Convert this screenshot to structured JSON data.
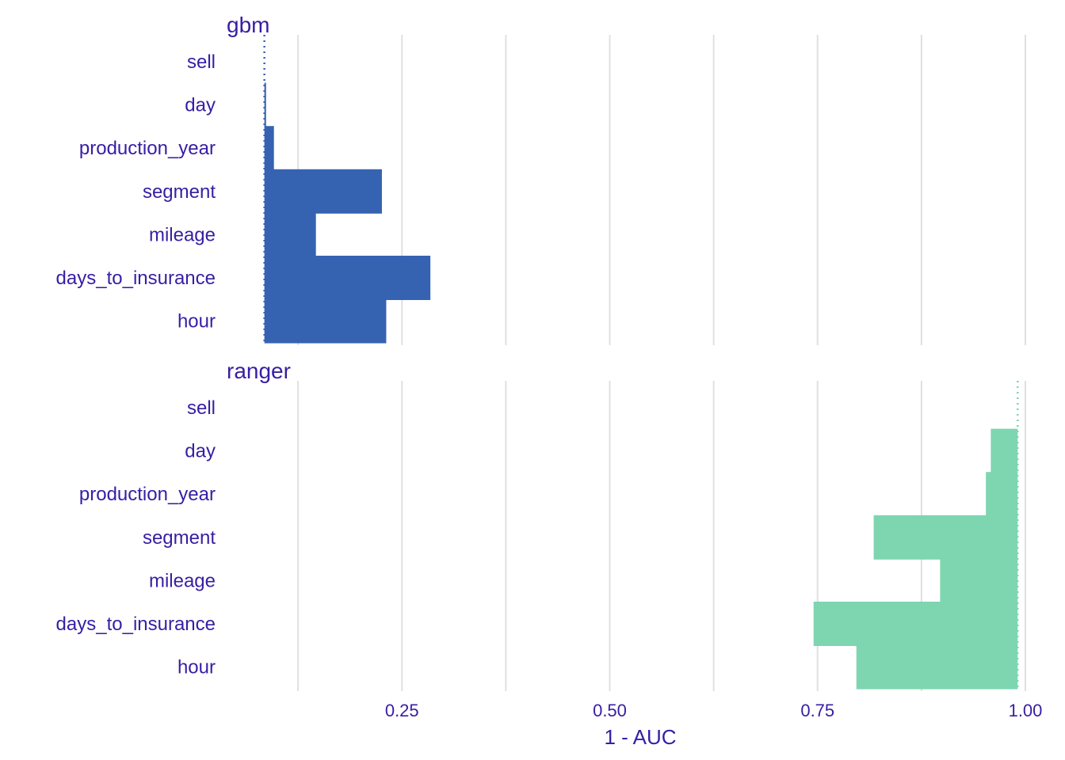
{
  "chart_data": {
    "type": "bar",
    "xlabel": "1 - AUC",
    "xlim": [
      0.0,
      1.0
    ],
    "x_ticks": [
      {
        "value": 0.25,
        "label": "0.25"
      },
      {
        "value": 0.5,
        "label": "0.50"
      },
      {
        "value": 0.75,
        "label": "0.75"
      },
      {
        "value": 1.0,
        "label": "1.00"
      }
    ],
    "grid": true,
    "categories": [
      "sell",
      "day",
      "production_year",
      "segment",
      "mileage",
      "days_to_insurance",
      "hour"
    ],
    "panels": [
      {
        "name": "gbm",
        "color": "#3563b2",
        "baseline": 0.0845,
        "values": [
          0.0845,
          0.0865,
          0.096,
          0.2259,
          0.1465,
          0.2842,
          0.2311
        ]
      },
      {
        "name": "ranger",
        "color": "#7dd6b0",
        "baseline": 0.9907,
        "values": [
          0.9907,
          0.9584,
          0.9525,
          0.8175,
          0.8974,
          0.7452,
          0.7967
        ]
      }
    ]
  }
}
